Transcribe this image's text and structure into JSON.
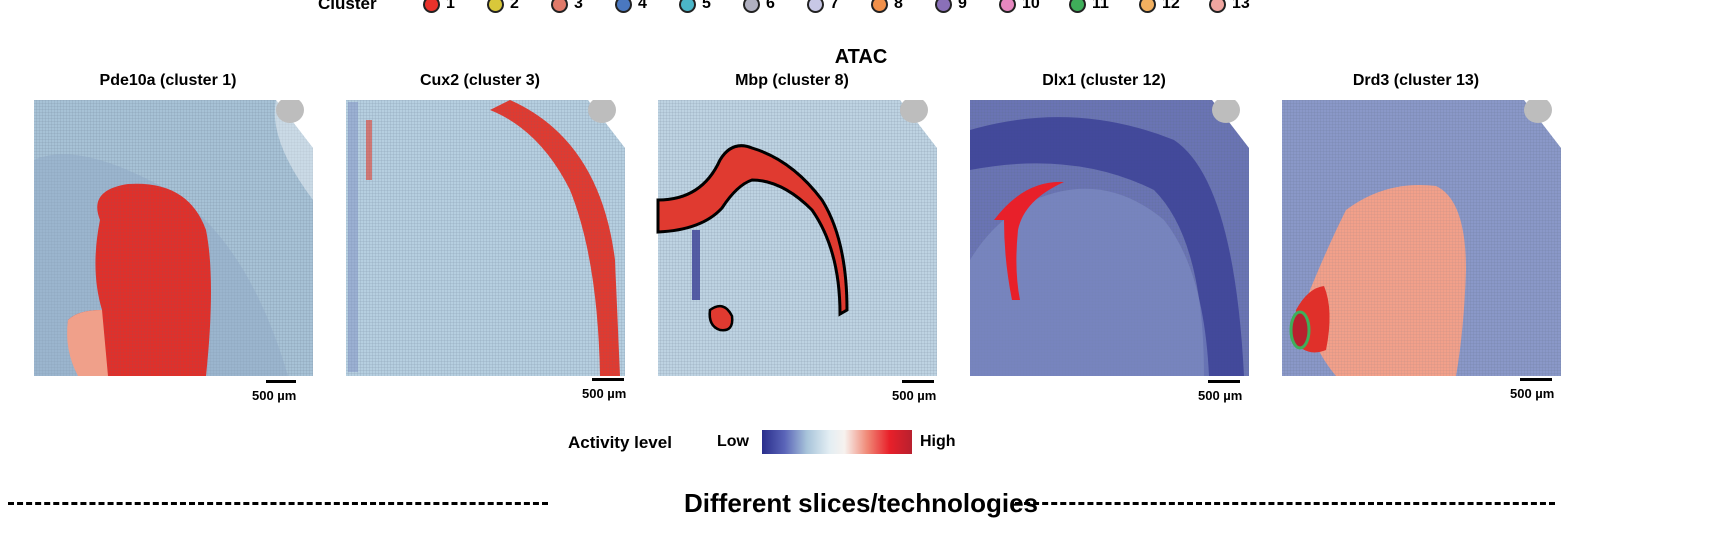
{
  "legend": {
    "title": "Cluster",
    "items": [
      {
        "label": "1",
        "color": "#e8322b"
      },
      {
        "label": "2",
        "color": "#d9c83a"
      },
      {
        "label": "3",
        "color": "#e07a6a"
      },
      {
        "label": "4",
        "color": "#4a78c0"
      },
      {
        "label": "5",
        "color": "#4bb6c8"
      },
      {
        "label": "6",
        "color": "#b0b0c0"
      },
      {
        "label": "7",
        "color": "#c8c8e6"
      },
      {
        "label": "8",
        "color": "#f0904a"
      },
      {
        "label": "9",
        "color": "#8a70b8"
      },
      {
        "label": "10",
        "color": "#e688c0"
      },
      {
        "label": "11",
        "color": "#3fae5a"
      },
      {
        "label": "12",
        "color": "#f2b060"
      },
      {
        "label": "13",
        "color": "#f0a6a0"
      }
    ]
  },
  "main_title": "ATAC",
  "panels": [
    {
      "title": "Pde10a (cluster 1)",
      "scale_label": "500 µm"
    },
    {
      "title": "Cux2 (cluster 3)",
      "scale_label": "500 µm"
    },
    {
      "title": "Mbp (cluster 8)",
      "scale_label": "500 µm"
    },
    {
      "title": "Dlx1 (cluster 12)",
      "scale_label": "500 µm"
    },
    {
      "title": "Drd3 (cluster 13)",
      "scale_label": "500 µm"
    }
  ],
  "colorbar": {
    "title": "Activity level",
    "low": "Low",
    "high": "High"
  },
  "section_title": "Different slices/technologies",
  "colors": {
    "low": "#2a2e8c",
    "mid": "#e3eef3",
    "high": "#e8202a"
  }
}
